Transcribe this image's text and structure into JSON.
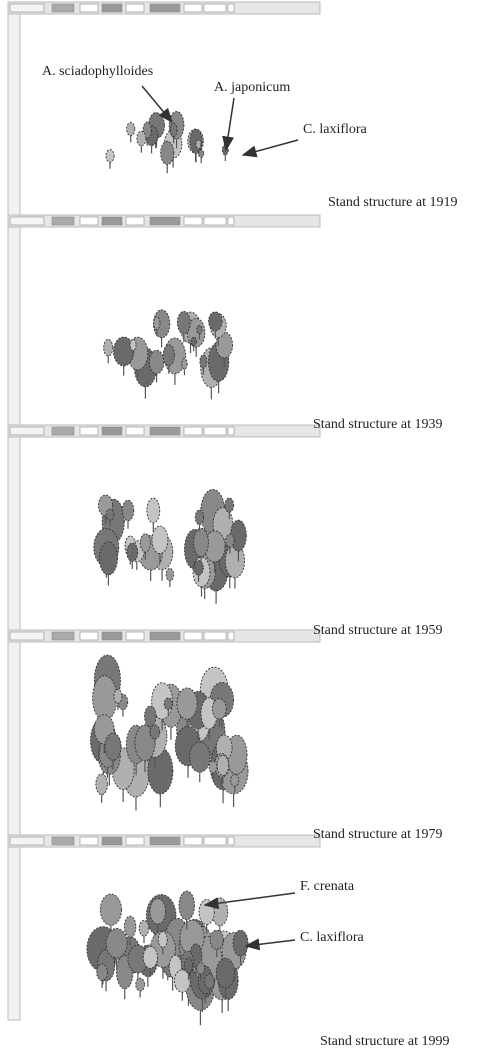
{
  "panels": [
    {
      "caption": "Stand structure at 1919",
      "annotations": [
        "A. sciadophylloides",
        "A. japonicum",
        "C. laxiflora"
      ]
    },
    {
      "caption": "Stand structure at 1939"
    },
    {
      "caption": "Stand structure at 1959"
    },
    {
      "caption": "Stand structure at 1979"
    },
    {
      "caption": "Stand structure at 1999",
      "annotations": [
        "F. crenata",
        "C. laxiflora"
      ]
    }
  ]
}
